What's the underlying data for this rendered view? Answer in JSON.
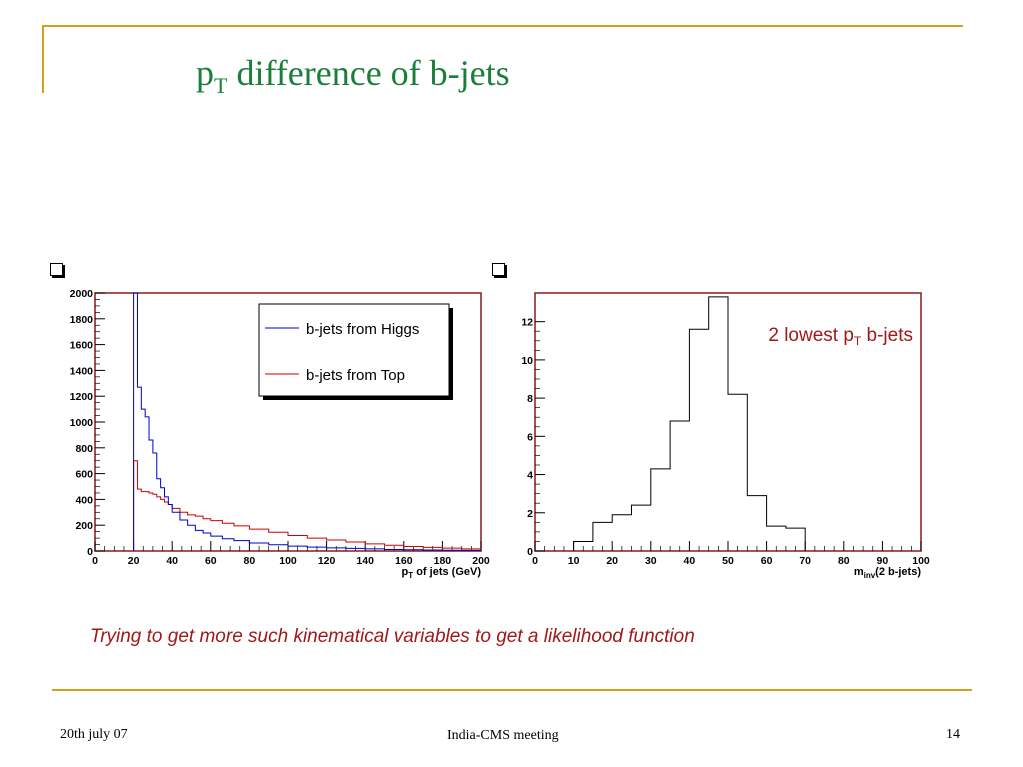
{
  "slide": {
    "title_main": "p",
    "title_sub": "T",
    "title_rest": " difference of b-jets",
    "note": "Trying to get more such kinematical variables to get a likelihood function",
    "footer_left": "20th july 07",
    "footer_center": "India-CMS meeting",
    "footer_right": "14"
  },
  "colors": {
    "accent": "#d4a017",
    "title": "#1a7f3a",
    "frame": "#8b1a1a",
    "higgs": "#0000cc",
    "top": "#cc0000",
    "note": "#a01818"
  },
  "chart_data": [
    {
      "type": "line",
      "xlim": [
        0,
        200
      ],
      "ylim": [
        0,
        2000
      ],
      "xticks": [
        "0",
        "20",
        "40",
        "60",
        "80",
        "100",
        "120",
        "140",
        "160",
        "180",
        "200"
      ],
      "yticks": [
        "0",
        "200",
        "400",
        "600",
        "800",
        "1000",
        "1200",
        "1400",
        "1600",
        "1800",
        "2000"
      ],
      "xlabel_main": "p",
      "xlabel_sub": "T",
      "xlabel_rest": " of jets (GeV)",
      "legend_position": "top-right",
      "x": [
        20,
        22,
        24,
        26,
        28,
        30,
        32,
        34,
        36,
        38,
        40,
        44,
        48,
        52,
        56,
        60,
        66,
        72,
        80,
        90,
        100,
        110,
        120,
        130,
        140,
        150,
        160,
        170,
        180,
        190,
        200
      ],
      "series": [
        {
          "name": "b-jets from Higgs",
          "color": "#0000cc",
          "values": [
            2000,
            1270,
            1100,
            1040,
            860,
            760,
            560,
            490,
            420,
            360,
            300,
            240,
            200,
            160,
            140,
            115,
            95,
            80,
            62,
            48,
            38,
            30,
            24,
            20,
            16,
            12,
            10,
            8,
            6,
            5,
            4
          ]
        },
        {
          "name": "b-jets from Top",
          "color": "#cc0000",
          "values": [
            700,
            480,
            460,
            460,
            450,
            440,
            420,
            400,
            380,
            360,
            330,
            300,
            280,
            270,
            250,
            235,
            215,
            195,
            170,
            145,
            120,
            100,
            85,
            70,
            55,
            45,
            35,
            28,
            22,
            16,
            12
          ]
        }
      ]
    },
    {
      "type": "bar",
      "annotation_main": "2 lowest p",
      "annotation_sub": "T",
      "annotation_rest": " b-jets",
      "xlim": [
        0,
        100
      ],
      "ylim": [
        0,
        13.5
      ],
      "xticks": [
        "0",
        "10",
        "20",
        "30",
        "40",
        "50",
        "60",
        "70",
        "80",
        "90",
        "100"
      ],
      "yticks": [
        "0",
        "2",
        "4",
        "6",
        "8",
        "10",
        "12"
      ],
      "xlabel_main": "m",
      "xlabel_sub": "inv",
      "xlabel_rest": "(2 b-jets)",
      "bin_edges": [
        10,
        15,
        20,
        25,
        30,
        35,
        40,
        45,
        50,
        55,
        60,
        65,
        70
      ],
      "values": [
        0.5,
        1.5,
        1.9,
        2.4,
        4.3,
        6.8,
        11.6,
        13.3,
        8.2,
        2.9,
        1.3,
        1.2
      ]
    }
  ]
}
